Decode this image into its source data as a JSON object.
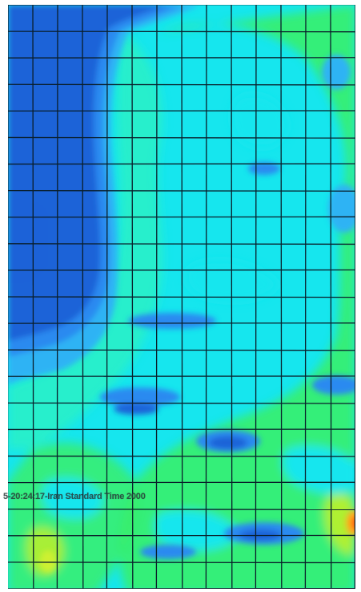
{
  "viewport": {
    "timestamp_text": "5-20:24:17-Iran Standard Time 2000"
  },
  "contour_palette": {
    "dark_blue": "#1f63d8",
    "blue": "#2a8af0",
    "light_blue": "#2fb3f4",
    "cyan": "#16e6ee",
    "aqua": "#2cf0c6",
    "green": "#38ef6b",
    "yellow_green": "#b6f02f",
    "orange": "#ffb21a",
    "red": "#ff5a16"
  },
  "mesh": {
    "columns": 14,
    "rows": 22,
    "line_color": "#0a1e2a"
  }
}
